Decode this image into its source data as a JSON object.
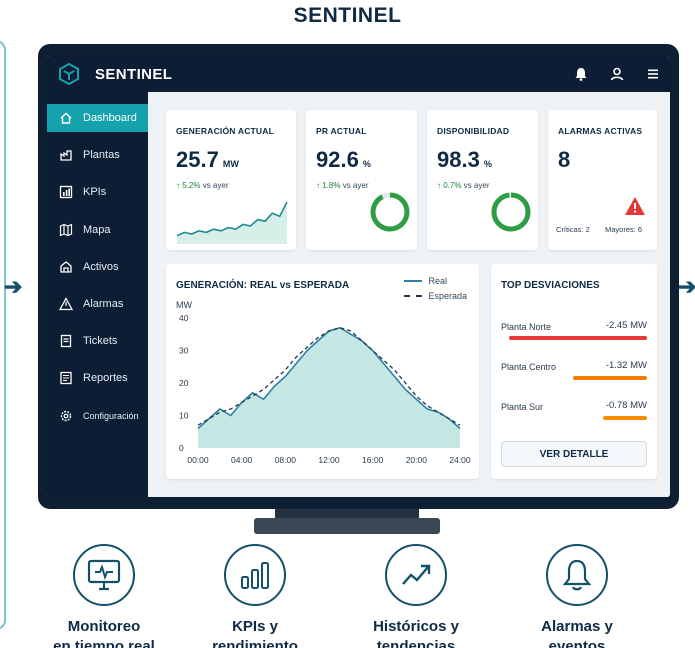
{
  "page_title": "SENTINEL",
  "app": {
    "brand": "SENTINEL",
    "icons": [
      "bell-icon",
      "user-icon",
      "menu-icon"
    ]
  },
  "sidebar": {
    "items": [
      {
        "label": "Dashboard",
        "icon": "home-icon",
        "active": true
      },
      {
        "label": "Plantas",
        "icon": "plant-icon"
      },
      {
        "label": "KPIs",
        "icon": "kpi-icon"
      },
      {
        "label": "Mapa",
        "icon": "map-icon"
      },
      {
        "label": "Activos",
        "icon": "asset-icon"
      },
      {
        "label": "Alarmas",
        "icon": "alarm-icon"
      },
      {
        "label": "Tickets",
        "icon": "ticket-icon"
      },
      {
        "label": "Reportes",
        "icon": "report-icon"
      },
      {
        "label": "Configuración",
        "icon": "gear-icon"
      }
    ]
  },
  "kpis": [
    {
      "title": "GENERACIÓN ACTUAL",
      "value": "25.7",
      "unit": "MW",
      "delta": "5.2%",
      "delta_note": "vs ayer"
    },
    {
      "title": "PR ACTUAL",
      "value": "92.6",
      "unit": "%",
      "delta": "1.8%",
      "delta_note": "vs ayer",
      "gauge": 0.926
    },
    {
      "title": "DISPONIBILIDAD",
      "value": "98.3",
      "unit": "%",
      "delta": "0.7%",
      "delta_note": "vs ayer",
      "gauge": 0.983
    },
    {
      "title": "ALARMAS ACTIVAS",
      "value": "8",
      "critical": "Críticas: 2",
      "major": "Mayores: 6"
    }
  ],
  "generation_chart": {
    "title": "GENERACIÓN: REAL vs ESPERADA",
    "legend": [
      "Real",
      "Esperada"
    ]
  },
  "chart_data": {
    "type": "area",
    "title": "GENERACIÓN: REAL vs ESPERADA",
    "ylabel": "MW",
    "xlabel": "",
    "ylim": [
      0,
      40
    ],
    "yticks": [
      0,
      10,
      20,
      30,
      40
    ],
    "x_ticks": [
      "00:00",
      "04:00",
      "08:00",
      "12:00",
      "16:00",
      "20:00",
      "24:00"
    ],
    "x": [
      0,
      1,
      2,
      3,
      4,
      5,
      6,
      7,
      8,
      9,
      10,
      11,
      12,
      13,
      14,
      15,
      16,
      17,
      18,
      19,
      20,
      21,
      22,
      23,
      24
    ],
    "series": [
      {
        "name": "Real",
        "values": [
          6,
          9,
          12,
          10,
          14,
          17,
          15,
          19,
          22,
          26,
          30,
          33,
          36,
          37,
          35,
          33,
          30,
          26,
          22,
          18,
          15,
          12,
          11,
          9,
          6
        ]
      },
      {
        "name": "Esperada",
        "values": [
          7,
          9,
          11,
          12,
          14,
          16,
          18,
          21,
          24,
          28,
          31,
          34,
          36,
          37,
          36,
          33,
          30,
          27,
          24,
          20,
          16,
          13,
          11,
          9,
          7
        ]
      }
    ],
    "grid": false,
    "legend_position": "top-right"
  },
  "sparkline": {
    "values": [
      4,
      6,
      5,
      7,
      6,
      8,
      7,
      9,
      8,
      11,
      10,
      14,
      13,
      18,
      16,
      25
    ]
  },
  "deviations": {
    "title": "TOP DESVIACIONES",
    "rows": [
      {
        "name": "Planta Norte",
        "value": "-2.45 MW",
        "magnitude": 2.45,
        "color": "#e53935"
      },
      {
        "name": "Planta Centro",
        "value": "-1.32 MW",
        "magnitude": 1.32,
        "color": "#f57c00"
      },
      {
        "name": "Planta Sur",
        "value": "-0.78 MW",
        "magnitude": 0.78,
        "color": "#fb8c00"
      }
    ],
    "button": "VER DETALLE"
  },
  "features": [
    {
      "label1": "Monitoreo",
      "label2": "en tiempo real",
      "icon": "monitor-icon"
    },
    {
      "label1": "KPIs y",
      "label2": "rendimiento",
      "icon": "bar-chart-icon"
    },
    {
      "label1": "Históricos y",
      "label2": "tendencias",
      "icon": "trend-icon"
    },
    {
      "label1": "Alarmas y",
      "label2": "eventos",
      "icon": "bell-icon"
    }
  ],
  "colors": {
    "accent": "#16a2ad",
    "navy": "#0d1d33",
    "green": "#2e9e45",
    "area": "#bfe4e0"
  }
}
